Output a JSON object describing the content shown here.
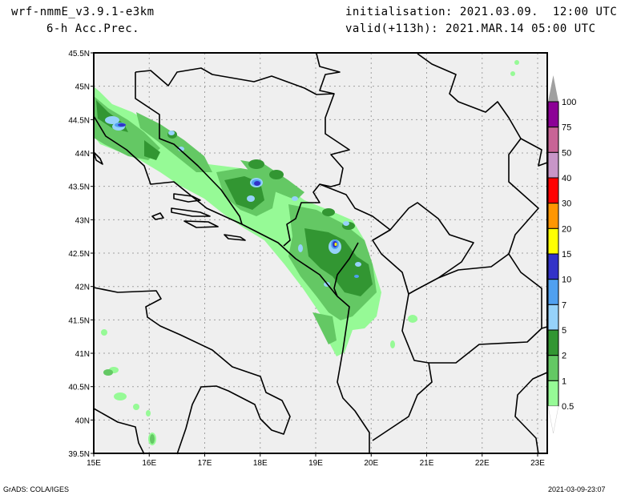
{
  "header": {
    "model": "wrf-nmmE_v3.9.1-e3km",
    "field": "6-h Acc.Prec.",
    "initialisation": "initialisation: 2021.03.09.  12:00 UTC",
    "valid": "valid(+113h): 2021.MAR.14 05:00 UTC"
  },
  "map": {
    "lon_labels": [
      "15E",
      "16E",
      "17E",
      "18E",
      "19E",
      "20E",
      "21E",
      "22E",
      "23E"
    ],
    "lat_labels": [
      "45.5N",
      "45N",
      "44.5N",
      "44N",
      "43.5N",
      "43N",
      "42.5N",
      "42N",
      "41.5N",
      "41N",
      "40.5N",
      "40N",
      "39.5N"
    ],
    "colors": {
      "background": "#efefef",
      "grid": "#a0a0a0",
      "border": "#000000"
    }
  },
  "colorbar": {
    "levels": [
      "100",
      "75",
      "50",
      "40",
      "30",
      "20",
      "15",
      "10",
      "7",
      "5",
      "2",
      "1",
      "0.5"
    ],
    "colors": [
      "#a0a0a0",
      "#8c0096",
      "#c86496",
      "#c896c8",
      "#ff0000",
      "#ff9600",
      "#ffff00",
      "#3232c8",
      "#50a0f0",
      "#96d2fa",
      "#329632",
      "#64c864",
      "#96fa96",
      "#ffffff"
    ]
  },
  "footer": {
    "left": "GrADS: COLA/IGES",
    "right": "2021-03-09-23:07"
  }
}
